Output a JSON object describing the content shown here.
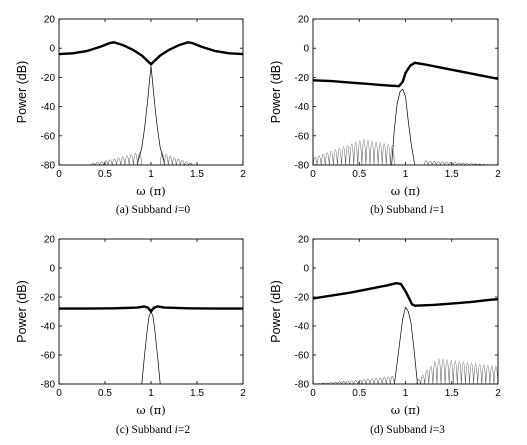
{
  "chart_data": [
    {
      "type": "line",
      "caption": "(a) Subband i = 0",
      "caption_prefix": "(a) Subband",
      "caption_var": "i",
      "caption_eq": "=0",
      "xlabel": "ω (π)",
      "ylabel": "Power (dB)",
      "xlim": [
        0,
        2
      ],
      "ylim": [
        -80,
        20
      ],
      "xticks": [
        0,
        0.5,
        1,
        1.5,
        2
      ],
      "xtick_labels": [
        "0",
        "0.5",
        "1",
        "1.5",
        "2"
      ],
      "yticks": [
        20,
        0,
        -20,
        -40,
        -60,
        -80
      ],
      "ytick_labels": [
        "20",
        "0",
        "-20",
        "-40",
        "-60",
        "-80"
      ],
      "grid": false,
      "series": [
        {
          "style": "thick",
          "x": [
            0,
            0.15,
            0.3,
            0.45,
            0.55,
            0.6,
            0.7,
            0.8,
            0.9,
            0.95,
            1.0,
            1.05,
            1.1,
            1.2,
            1.3,
            1.4,
            1.45,
            1.55,
            1.7,
            1.85,
            2.0
          ],
          "y": [
            -4,
            -3.5,
            -2,
            1,
            3.5,
            4,
            2,
            -1,
            -5,
            -8,
            -11,
            -8,
            -5,
            -1,
            2,
            4,
            3.5,
            1,
            -2,
            -3.5,
            -4
          ]
        },
        {
          "style": "thin",
          "x": [
            0.85,
            0.9,
            0.93,
            0.96,
            0.98,
            1.0,
            1.02,
            1.04,
            1.07,
            1.1,
            1.15
          ],
          "y": [
            -80,
            -68,
            -55,
            -38,
            -25,
            -12,
            -25,
            -38,
            -55,
            -68,
            -80
          ]
        },
        {
          "style": "ripple",
          "band": [
            0.35,
            0.9
          ],
          "edge_level": -68,
          "floor_level": -79,
          "lobe_width": 0.045
        },
        {
          "style": "ripple",
          "band": [
            1.1,
            1.45
          ],
          "edge_level": -68,
          "floor_level": -79,
          "lobe_width": 0.045
        }
      ]
    },
    {
      "type": "line",
      "caption": "(b) Subband i = 1",
      "caption_prefix": "(b) Subband",
      "caption_var": "i",
      "caption_eq": "=1",
      "xlabel": "ω (π)",
      "ylabel": "Power (dB)",
      "xlim": [
        0,
        2
      ],
      "ylim": [
        -80,
        20
      ],
      "xticks": [
        0,
        0.5,
        1,
        1.5,
        2
      ],
      "xtick_labels": [
        "0",
        "0.5",
        "1",
        "1.5",
        "2"
      ],
      "yticks": [
        20,
        0,
        -20,
        -40,
        -60,
        -80
      ],
      "ytick_labels": [
        "20",
        "0",
        "-20",
        "-40",
        "-60",
        "-80"
      ],
      "grid": false,
      "series": [
        {
          "style": "thick",
          "x": [
            0,
            0.2,
            0.4,
            0.6,
            0.8,
            0.93,
            0.97,
            1.0,
            1.05,
            1.1,
            1.2,
            1.4,
            1.6,
            1.8,
            2.0
          ],
          "y": [
            -22,
            -22.5,
            -23.5,
            -24.5,
            -25.5,
            -26,
            -23,
            -17,
            -12,
            -10,
            -11,
            -13.5,
            -16,
            -18.5,
            -21
          ]
        },
        {
          "style": "thin",
          "x": [
            0.85,
            0.88,
            0.91,
            0.94,
            0.97,
            1.0,
            1.03,
            1.06,
            1.1
          ],
          "y": [
            -80,
            -55,
            -38,
            -30,
            -28,
            -33,
            -50,
            -65,
            -80
          ]
        },
        {
          "style": "ripple",
          "band": [
            0.0,
            0.88
          ],
          "edge_level": -58,
          "floor_level": -77,
          "lobe_width": 0.045,
          "peak_at": 0.55,
          "low_level": -74
        },
        {
          "style": "ripple",
          "band": [
            1.2,
            2.0
          ],
          "edge_level": -76,
          "floor_level": -80,
          "lobe_width": 0.045
        }
      ]
    },
    {
      "type": "line",
      "caption": "(c) Subband i = 2",
      "caption_prefix": "(c) Subband",
      "caption_var": "i",
      "caption_eq": "=2",
      "xlabel": "ω (π)",
      "ylabel": "Power (dB)",
      "xlim": [
        0,
        2
      ],
      "ylim": [
        -80,
        20
      ],
      "xticks": [
        0,
        0.5,
        1,
        1.5,
        2
      ],
      "xtick_labels": [
        "0",
        "0.5",
        "1",
        "1.5",
        "2"
      ],
      "yticks": [
        20,
        0,
        -20,
        -40,
        -60,
        -80
      ],
      "ytick_labels": [
        "20",
        "0",
        "-20",
        "-40",
        "-60",
        "-80"
      ],
      "grid": false,
      "series": [
        {
          "style": "thick",
          "x": [
            0,
            0.3,
            0.6,
            0.85,
            0.93,
            0.97,
            1.0,
            1.03,
            1.07,
            1.15,
            1.4,
            1.7,
            2.0
          ],
          "y": [
            -28,
            -28,
            -27.8,
            -27.3,
            -26.5,
            -27.5,
            -30,
            -27.5,
            -26.5,
            -27.3,
            -27.8,
            -28,
            -28
          ]
        },
        {
          "style": "thin",
          "x": [
            0.9,
            0.93,
            0.96,
            0.98,
            1.0,
            1.02,
            1.04,
            1.07,
            1.1
          ],
          "y": [
            -80,
            -60,
            -42,
            -33,
            -30,
            -33,
            -42,
            -60,
            -80
          ]
        }
      ]
    },
    {
      "type": "line",
      "caption": "(d) Subband i = 3",
      "caption_prefix": "(d) Subband",
      "caption_var": "i",
      "caption_eq": "=3",
      "xlabel": "ω (π)",
      "ylabel": "Power (dB)",
      "xlim": [
        0,
        2
      ],
      "ylim": [
        -80,
        20
      ],
      "xticks": [
        0,
        0.5,
        1,
        1.5,
        2
      ],
      "xtick_labels": [
        "0",
        "0.5",
        "1",
        "1.5",
        "2"
      ],
      "yticks": [
        20,
        0,
        -20,
        -40,
        -60,
        -80
      ],
      "ytick_labels": [
        "20",
        "0",
        "-20",
        "-40",
        "-60",
        "-80"
      ],
      "grid": false,
      "series": [
        {
          "style": "thick",
          "x": [
            0,
            0.2,
            0.4,
            0.6,
            0.8,
            0.9,
            0.95,
            1.0,
            1.04,
            1.07,
            1.1,
            1.3,
            1.5,
            1.7,
            1.9,
            2.0
          ],
          "y": [
            -21,
            -19,
            -17,
            -14.5,
            -12,
            -10.5,
            -11,
            -16,
            -21,
            -25,
            -26,
            -25.5,
            -24.5,
            -23.5,
            -22,
            -21.5
          ]
        },
        {
          "style": "thin",
          "x": [
            0.88,
            0.91,
            0.94,
            0.97,
            1.0,
            1.03,
            1.06,
            1.09,
            1.13
          ],
          "y": [
            -80,
            -65,
            -50,
            -35,
            -27,
            -30,
            -38,
            -55,
            -80
          ]
        },
        {
          "style": "ripple",
          "band": [
            0.0,
            0.88
          ],
          "edge_level": -73,
          "floor_level": -80,
          "lobe_width": 0.045
        },
        {
          "style": "ripple",
          "band": [
            1.12,
            2.0
          ],
          "edge_level": -58,
          "floor_level": -80,
          "lobe_width": 0.045,
          "peak_at": 1.35,
          "low_level": -78
        }
      ]
    }
  ]
}
